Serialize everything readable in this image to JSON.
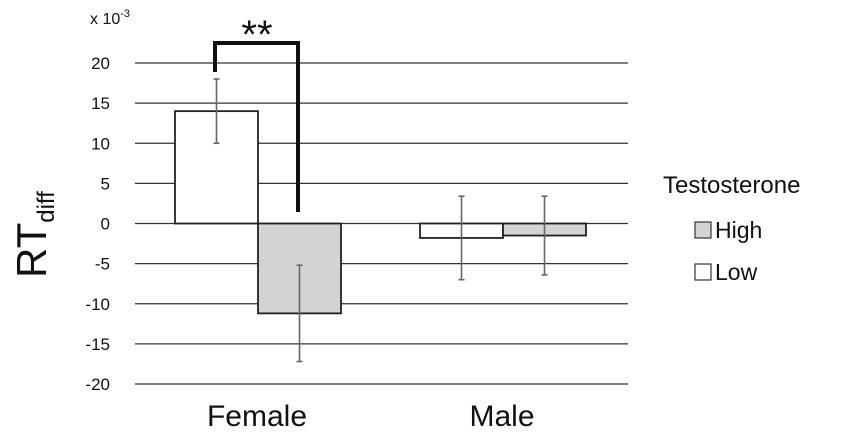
{
  "chart_data": {
    "type": "bar",
    "categories": [
      "Female",
      "Male"
    ],
    "series": [
      {
        "name": "Low",
        "values": [
          14.0,
          -1.8
        ],
        "error": [
          4.0,
          5.2
        ],
        "color": "#ffffff"
      },
      {
        "name": "High",
        "values": [
          -11.2,
          -1.5
        ],
        "error": [
          6.0,
          4.9
        ],
        "color": "#d3d3d3"
      }
    ],
    "ylim": [
      -20,
      20
    ],
    "yticks": [
      20,
      15,
      10,
      5,
      0,
      -5,
      -10,
      -15,
      -20
    ],
    "ytick_labels": [
      "20",
      "15",
      "10",
      "5",
      "0",
      "-5",
      "-10",
      "-15",
      "-20"
    ],
    "ylabel_main": "RT",
    "ylabel_sub": "diff",
    "scale_label": "x 10",
    "scale_exp": "-3",
    "grid": true,
    "legend": {
      "title": "Testosterone",
      "items": [
        {
          "label": "High",
          "color": "#d3d3d3"
        },
        {
          "label": "Low",
          "color": "#ffffff"
        }
      ],
      "placement": "right"
    },
    "annotation": {
      "text": "**",
      "between": [
        "Female Low",
        "Female High"
      ]
    }
  }
}
